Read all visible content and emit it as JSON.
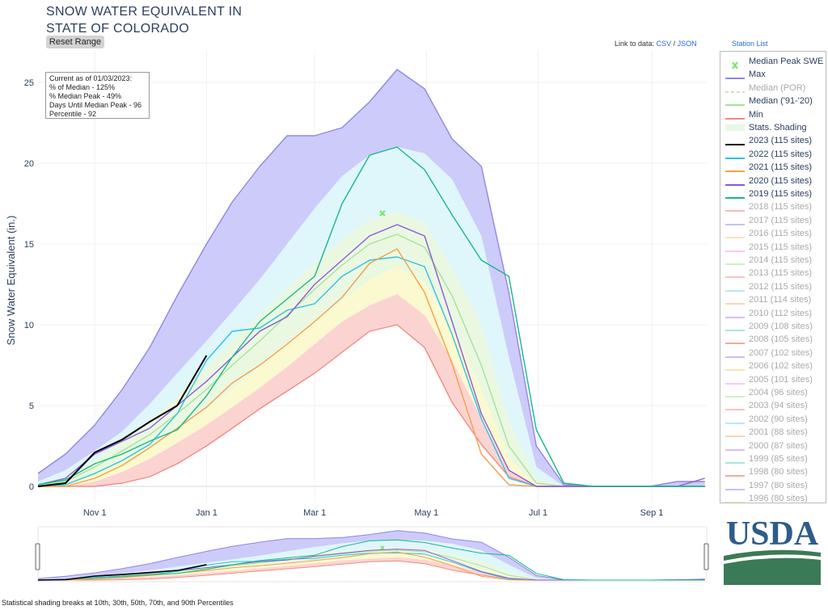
{
  "title_line1": "SNOW WATER EQUIVALENT IN",
  "title_line2": "STATE OF COLORADO",
  "reset_button": "Reset Range",
  "links": {
    "prefix": "Link to data:",
    "csv": "CSV",
    "sep": "/",
    "json": "JSON",
    "station_list": "Station List"
  },
  "info": {
    "line1": "Current as of 01/03/2023:",
    "line2": "% of Median - 125%",
    "line3": "% Median Peak - 49%",
    "line4": "Days Until Median Peak - 96",
    "line5": "Percentile - 92"
  },
  "footer": "Statistical shading breaks at 10th, 30th, 50th, 70th, and 90th Percentiles",
  "logo_text": "USDA",
  "legend": [
    {
      "label": "Median Peak SWE",
      "color": "#7be36b",
      "kind": "marker",
      "on": true
    },
    {
      "label": "Max",
      "color": "#8f87e8",
      "kind": "line",
      "on": true
    },
    {
      "label": "Median (POR)",
      "color": "#c7e6c0",
      "kind": "dash",
      "on": false
    },
    {
      "label": "Median ('91-'20)",
      "color": "#a6e39a",
      "kind": "line",
      "on": true
    },
    {
      "label": "Min",
      "color": "#f28b82",
      "kind": "line",
      "on": true
    },
    {
      "label": "Stats. Shading",
      "color": "#e8f8e4",
      "kind": "box",
      "on": true
    },
    {
      "label": "2023 (115 sites)",
      "color": "#000000",
      "kind": "line",
      "on": true
    },
    {
      "label": "2022 (115 sites)",
      "color": "#2ec3e0",
      "kind": "line",
      "on": true
    },
    {
      "label": "2021 (115 sites)",
      "color": "#f5a04a",
      "kind": "line",
      "on": true
    },
    {
      "label": "2020 (115 sites)",
      "color": "#8a5ad8",
      "kind": "line",
      "on": true
    },
    {
      "label": "2019 (115 sites)",
      "color": "#18b88a",
      "kind": "line",
      "on": true
    },
    {
      "label": "2018 (115 sites)",
      "color": "#f5a3a3",
      "kind": "line",
      "on": false
    },
    {
      "label": "2017 (115 sites)",
      "color": "#b3aef0",
      "kind": "line",
      "on": false
    },
    {
      "label": "2016 (115 sites)",
      "color": "#f8dc9c",
      "kind": "line",
      "on": false
    },
    {
      "label": "2015 (115 sites)",
      "color": "#f6b6f0",
      "kind": "line",
      "on": false
    },
    {
      "label": "2014 (115 sites)",
      "color": "#bdecb3",
      "kind": "line",
      "on": false
    },
    {
      "label": "2013 (115 sites)",
      "color": "#f7b0ae",
      "kind": "line",
      "on": false
    },
    {
      "label": "2012 (115 sites)",
      "color": "#9fe3ef",
      "kind": "line",
      "on": false
    },
    {
      "label": "2011 (114 sites)",
      "color": "#f8c89a",
      "kind": "line",
      "on": false
    },
    {
      "label": "2010 (112 sites)",
      "color": "#c9aaf0",
      "kind": "line",
      "on": false
    },
    {
      "label": "2009 (108 sites)",
      "color": "#8fdfc4",
      "kind": "line",
      "on": false
    },
    {
      "label": "2008 (105 sites)",
      "color": "#f28b82",
      "kind": "line",
      "on": false
    },
    {
      "label": "2007 (102 sites)",
      "color": "#b3aef0",
      "kind": "line",
      "on": false
    },
    {
      "label": "2006 (102 sites)",
      "color": "#f8dc9c",
      "kind": "line",
      "on": false
    },
    {
      "label": "2005 (101 sites)",
      "color": "#f6b6f0",
      "kind": "line",
      "on": false
    },
    {
      "label": "2004 (96 sites)",
      "color": "#bdecb3",
      "kind": "line",
      "on": false
    },
    {
      "label": "2003 (94 sites)",
      "color": "#f7b0ae",
      "kind": "line",
      "on": false
    },
    {
      "label": "2002 (90 sites)",
      "color": "#9fe3ef",
      "kind": "line",
      "on": false
    },
    {
      "label": "2001 (88 sites)",
      "color": "#f8c89a",
      "kind": "line",
      "on": false
    },
    {
      "label": "2000 (87 sites)",
      "color": "#c9aaf0",
      "kind": "line",
      "on": false
    },
    {
      "label": "1999 (85 sites)",
      "color": "#8fdfc4",
      "kind": "line",
      "on": false
    },
    {
      "label": "1998 (80 sites)",
      "color": "#f28b82",
      "kind": "line",
      "on": false
    },
    {
      "label": "1997 (80 sites)",
      "color": "#b3aef0",
      "kind": "line",
      "on": false
    },
    {
      "label": "1996 (80 sites)",
      "color": "#f8dc9c",
      "kind": "line",
      "on": false
    }
  ],
  "chart_data": {
    "type": "area",
    "title": "SNOW WATER EQUIVALENT IN STATE OF COLORADO",
    "ylabel": "Snow Water Equivalent (in.)",
    "xlabel": "",
    "ylim": [
      -1,
      27
    ],
    "yticks": [
      0,
      5,
      10,
      15,
      20,
      25
    ],
    "xticks": [
      {
        "label": "Nov 1",
        "day": 31
      },
      {
        "label": "Jan 1",
        "day": 92
      },
      {
        "label": "Mar 1",
        "day": 151
      },
      {
        "label": "May 1",
        "day": 212
      },
      {
        "label": "Jul 1",
        "day": 273
      },
      {
        "label": "Sep 1",
        "day": 335
      }
    ],
    "xlim_days": [
      0,
      365
    ],
    "x_day_origin": "Oct 1",
    "median_peak": {
      "day": 188,
      "value": 16.9
    },
    "x_days": [
      0,
      15,
      31,
      46,
      61,
      76,
      92,
      106,
      121,
      136,
      151,
      166,
      181,
      196,
      211,
      226,
      242,
      257,
      272,
      287,
      303,
      318,
      334,
      349,
      364
    ],
    "series": [
      {
        "name": "Max",
        "color": "#8f87e8",
        "values": [
          0.8,
          2.0,
          3.8,
          6.0,
          8.6,
          11.8,
          15.0,
          17.6,
          19.8,
          21.7,
          21.7,
          22.2,
          23.8,
          25.8,
          24.6,
          21.5,
          19.8,
          12.0,
          2.5,
          0.1,
          0,
          0,
          0,
          0.3,
          0.3
        ]
      },
      {
        "name": "p90",
        "color": "#cfd0fb",
        "values": [
          0.3,
          1.0,
          2.2,
          3.4,
          5.1,
          7.0,
          9.0,
          10.8,
          12.8,
          15.0,
          17.2,
          19.2,
          20.5,
          21.0,
          20.6,
          19.0,
          15.5,
          8.0,
          1.2,
          0,
          0,
          0,
          0,
          0,
          0
        ]
      },
      {
        "name": "p70",
        "color": "#e1f8fb",
        "values": [
          0.1,
          0.6,
          1.6,
          2.8,
          4.0,
          5.6,
          7.4,
          9.0,
          10.6,
          12.3,
          13.8,
          15.3,
          16.5,
          17.0,
          16.3,
          13.5,
          10.0,
          4.0,
          0.5,
          0,
          0,
          0,
          0,
          0,
          0
        ]
      },
      {
        "name": "Median ('91-'20)",
        "color": "#a6e39a",
        "values": [
          0,
          0.3,
          1.2,
          2.2,
          3.2,
          4.5,
          6.0,
          7.5,
          9.0,
          10.6,
          12.2,
          13.7,
          15.0,
          15.6,
          14.8,
          11.8,
          7.5,
          2.5,
          0.2,
          0,
          0,
          0,
          0,
          0,
          0
        ]
      },
      {
        "name": "p30",
        "color": "#fbfbd6",
        "values": [
          0,
          0.1,
          0.7,
          1.6,
          2.5,
          3.6,
          4.8,
          6.0,
          7.4,
          8.8,
          10.2,
          11.5,
          12.8,
          13.6,
          12.6,
          9.8,
          6.0,
          1.8,
          0.1,
          0,
          0,
          0,
          0,
          0,
          0
        ]
      },
      {
        "name": "p10",
        "color": "#fcd8d8",
        "values": [
          0,
          0,
          0.3,
          0.9,
          1.7,
          2.7,
          3.8,
          4.9,
          6.1,
          7.4,
          8.8,
          10.2,
          11.2,
          11.9,
          10.6,
          7.8,
          4.2,
          1.0,
          0,
          0,
          0,
          0,
          0,
          0,
          0
        ]
      },
      {
        "name": "Min",
        "color": "#f28b82",
        "values": [
          0,
          0,
          0,
          0.2,
          0.6,
          1.4,
          2.5,
          3.6,
          4.8,
          5.9,
          7.0,
          8.3,
          9.6,
          10.0,
          8.6,
          5.2,
          2.6,
          0.6,
          0,
          0,
          0,
          0,
          0,
          0,
          0
        ]
      },
      {
        "name": "2023 (115 sites)",
        "color": "#000000",
        "x_days": [
          0,
          15,
          31,
          46,
          61,
          76,
          92
        ],
        "values": [
          0,
          0.2,
          2.1,
          2.9,
          4.0,
          5.0,
          8.1
        ]
      },
      {
        "name": "2022 (115 sites)",
        "color": "#2ec3e0",
        "values": [
          0,
          0.1,
          0.8,
          1.6,
          2.6,
          4.5,
          7.8,
          9.6,
          9.8,
          10.9,
          11.3,
          13.0,
          14.0,
          14.2,
          13.6,
          9.4,
          4.2,
          0.5,
          0,
          0,
          0,
          0,
          0,
          0,
          0
        ]
      },
      {
        "name": "2021 (115 sites)",
        "color": "#f5a04a",
        "values": [
          0,
          0,
          0.5,
          1.3,
          2.4,
          3.6,
          4.9,
          6.4,
          7.5,
          8.8,
          10.2,
          11.7,
          13.8,
          14.7,
          12.0,
          7.6,
          2.0,
          0.1,
          0,
          0,
          0,
          0,
          0,
          0,
          0
        ]
      },
      {
        "name": "2020 (115 sites)",
        "color": "#8a5ad8",
        "values": [
          0.1,
          0.5,
          2.0,
          2.8,
          3.6,
          5.0,
          6.5,
          8.0,
          9.6,
          10.5,
          12.5,
          14.0,
          15.5,
          16.2,
          15.5,
          10.2,
          4.5,
          1.0,
          0,
          0,
          0,
          0,
          0,
          0,
          0.5
        ]
      },
      {
        "name": "2019 (115 sites)",
        "color": "#18b88a",
        "values": [
          0.1,
          0.4,
          1.4,
          2.0,
          2.8,
          3.5,
          5.6,
          8.0,
          10.2,
          11.6,
          13.0,
          17.5,
          20.5,
          21.0,
          19.6,
          16.8,
          14.0,
          13.0,
          3.5,
          0.2,
          0,
          0,
          0,
          0,
          0
        ]
      }
    ]
  }
}
